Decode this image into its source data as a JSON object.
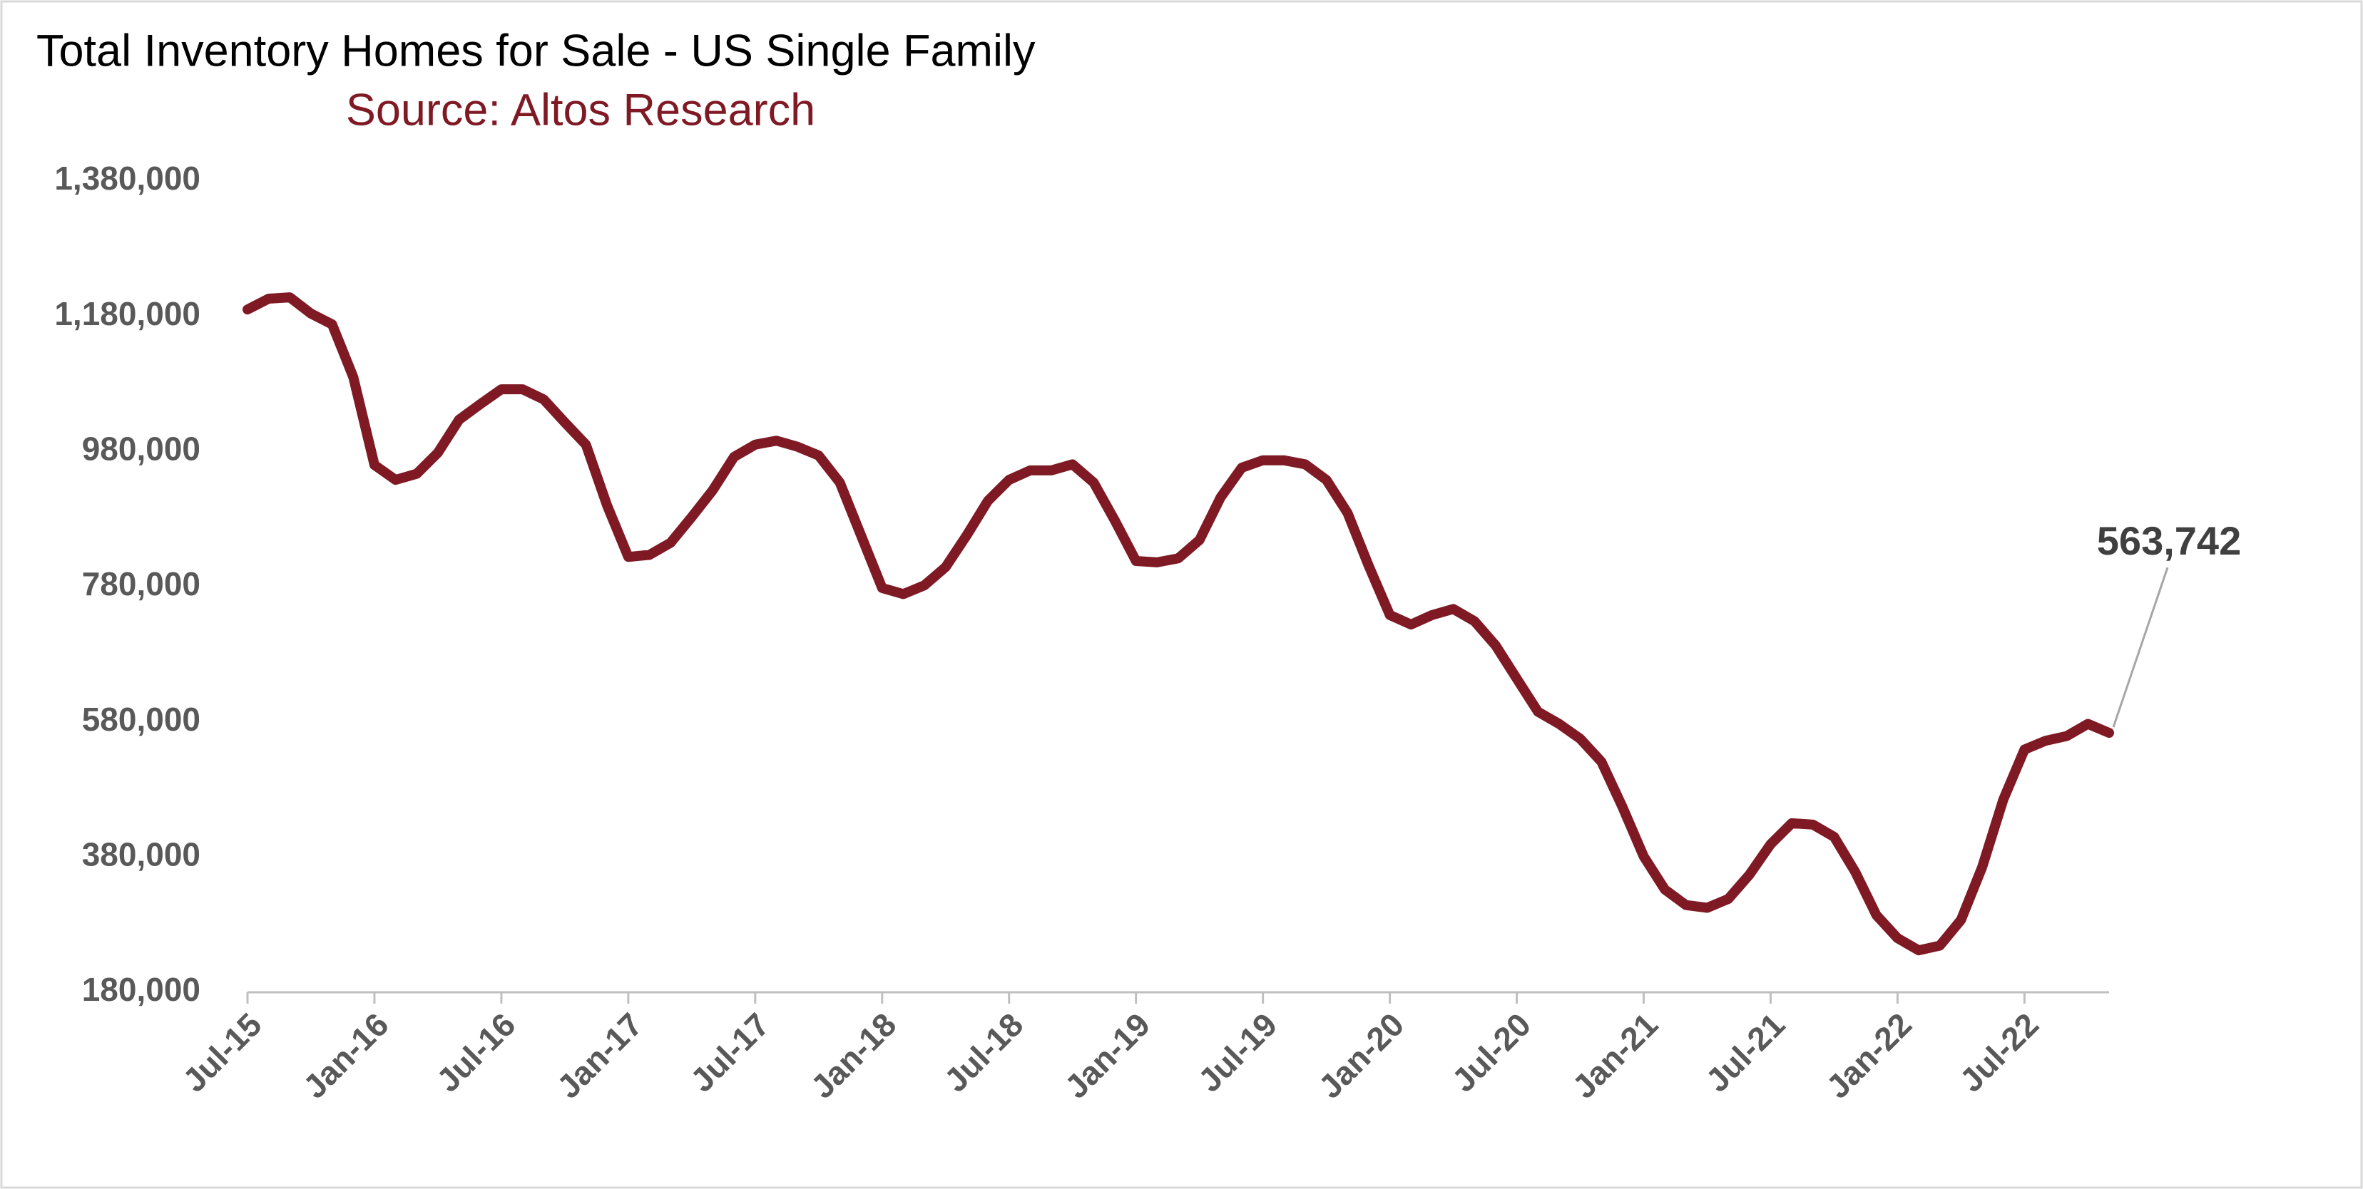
{
  "chart_data": {
    "type": "line",
    "title": "Total Inventory Homes for Sale - US Single Family",
    "subtitle": "Source: Altos Research",
    "categories": [
      "Jul-15",
      null,
      null,
      null,
      null,
      null,
      "Jan-16",
      null,
      null,
      null,
      null,
      null,
      "Jul-16",
      null,
      null,
      null,
      null,
      null,
      "Jan-17",
      null,
      null,
      null,
      null,
      null,
      "Jul-17",
      null,
      null,
      null,
      null,
      null,
      "Jan-18",
      null,
      null,
      null,
      null,
      null,
      "Jul-18",
      null,
      null,
      null,
      null,
      null,
      "Jan-19",
      null,
      null,
      null,
      null,
      null,
      "Jul-19",
      null,
      null,
      null,
      null,
      null,
      "Jan-20",
      null,
      null,
      null,
      null,
      null,
      "Jul-20",
      null,
      null,
      null,
      null,
      null,
      "Jan-21",
      null,
      null,
      null,
      null,
      null,
      "Jul-21",
      null,
      null,
      null,
      null,
      null,
      "Jan-22",
      null,
      null,
      null,
      null,
      null,
      "Jul-22",
      null,
      null,
      null,
      null
    ],
    "values": [
      1190000,
      1206000,
      1208000,
      1184000,
      1168000,
      1090000,
      960000,
      938000,
      947000,
      978000,
      1027000,
      1050000,
      1072000,
      1072000,
      1057000,
      1023000,
      990000,
      900000,
      824000,
      827000,
      845000,
      883000,
      923000,
      972000,
      990000,
      996000,
      987000,
      974000,
      934000,
      856000,
      778000,
      769000,
      782000,
      809000,
      856000,
      907000,
      938000,
      952000,
      952000,
      961000,
      934000,
      878000,
      818000,
      816000,
      822000,
      849000,
      912000,
      956000,
      967000,
      967000,
      961000,
      938000,
      889000,
      811000,
      738000,
      724000,
      738000,
      747000,
      729000,
      693000,
      644000,
      595000,
      577000,
      555000,
      521000,
      454000,
      381000,
      332000,
      309000,
      305000,
      318000,
      354000,
      399000,
      430000,
      428000,
      410000,
      358000,
      294000,
      260000,
      242000,
      249000,
      287000,
      365000,
      465000,
      539000,
      552000,
      559000,
      577000,
      563742
    ],
    "value_labels": [
      null,
      null,
      null,
      null,
      null,
      null,
      null,
      null,
      null,
      null,
      null,
      null,
      null,
      null,
      null,
      null,
      null,
      null,
      null,
      null,
      null,
      null,
      null,
      null,
      null,
      null,
      null,
      null,
      null,
      null,
      null,
      null,
      null,
      null,
      null,
      null,
      null,
      null,
      null,
      null,
      null,
      null,
      null,
      null,
      null,
      null,
      null,
      null,
      null,
      null,
      null,
      null,
      null,
      null,
      null,
      null,
      null,
      null,
      null,
      null,
      null,
      null,
      null,
      null,
      null,
      null,
      null,
      null,
      null,
      null,
      null,
      null,
      null,
      null,
      null,
      null,
      null,
      null,
      null,
      null,
      null,
      null,
      null,
      null,
      null,
      null,
      null,
      null,
      "563,742"
    ],
    "color": "#7f1a24",
    "ylim": [
      180000,
      1380000
    ],
    "yticks": [
      {
        "value": 180000,
        "label": "180,000"
      },
      {
        "value": 380000,
        "label": "380,000"
      },
      {
        "value": 580000,
        "label": "580,000"
      },
      {
        "value": 780000,
        "label": "780,000"
      },
      {
        "value": 980000,
        "label": "980,000"
      },
      {
        "value": 1180000,
        "label": "1,180,000"
      },
      {
        "value": 1380000,
        "label": "1,380,000"
      }
    ],
    "grid": false
  }
}
